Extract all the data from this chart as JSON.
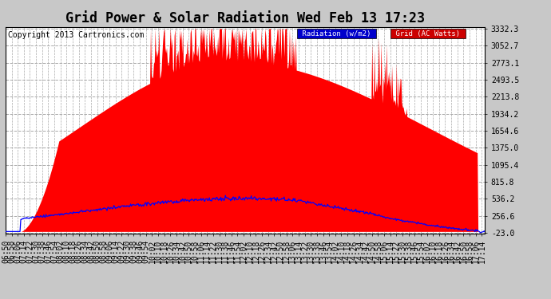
{
  "title": "Grid Power & Solar Radiation Wed Feb 13 17:23",
  "copyright": "Copyright 2013 Cartronics.com",
  "legend_radiation": "Radiation (w/m2)",
  "legend_grid": "Grid (AC Watts)",
  "background_color": "#c8c8c8",
  "plot_bg_color": "#ffffff",
  "grid_color": "#aaaaaa",
  "ytick_labels": [
    "-23.0",
    "256.6",
    "536.2",
    "815.8",
    "1095.4",
    "1375.0",
    "1654.6",
    "1934.2",
    "2213.8",
    "2493.5",
    "2773.1",
    "3052.7",
    "3332.3"
  ],
  "ytick_values": [
    -23.0,
    256.6,
    536.2,
    815.8,
    1095.4,
    1375.0,
    1654.6,
    1934.2,
    2213.8,
    2493.5,
    2773.1,
    3052.7,
    3332.3
  ],
  "ymin": -23.0,
  "ymax": 3332.3,
  "fill_color": "#ff0000",
  "line_color": "#0000ff",
  "title_fontsize": 12,
  "copyright_fontsize": 7,
  "tick_fontsize": 7
}
